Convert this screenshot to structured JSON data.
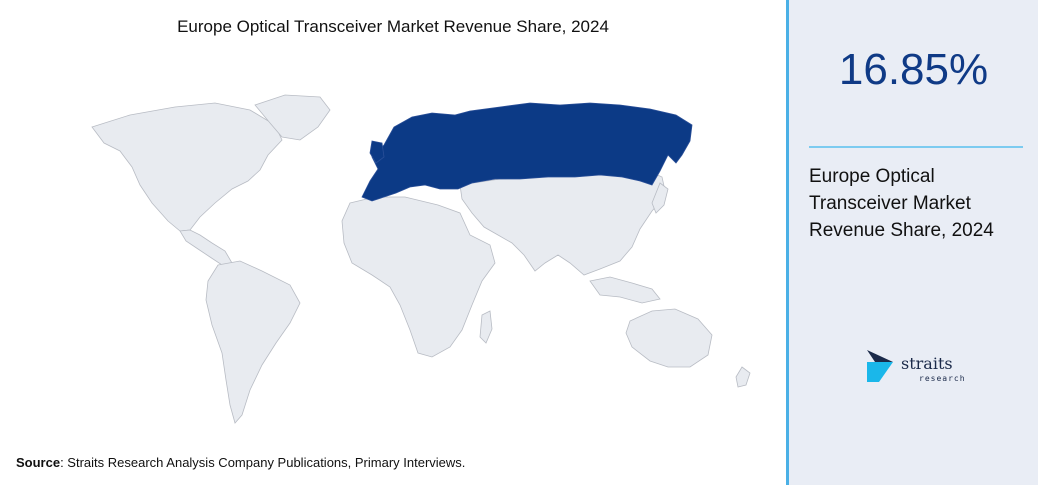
{
  "header": {
    "title": "Europe Optical Transceiver Market Revenue Share, 2024"
  },
  "source": {
    "label": "Source",
    "text": ": Straits Research Analysis Company Publications, Primary Interviews."
  },
  "sidebar": {
    "stat_value": "16.85%",
    "description": "Europe Optical Transceiver Market Revenue Share, 2024",
    "logo_text": "straits",
    "logo_subtext": "research"
  },
  "map": {
    "highlighted_region": "Europe",
    "colors": {
      "highlight": "#0c3a86",
      "land": "#e8ebf0",
      "border": "#b8bcc4"
    }
  },
  "colors": {
    "accent": "#4ab0e6",
    "stat": "#0f3a86",
    "panel_bg": "#e9edf5"
  }
}
